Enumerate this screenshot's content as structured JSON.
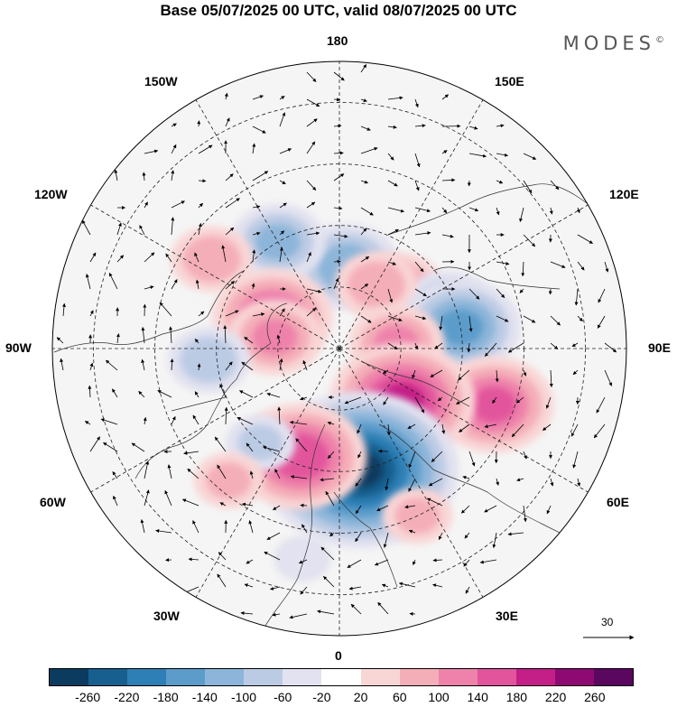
{
  "title": "Base 05/07/2025 00 UTC, valid 08/07/2025 00 UTC",
  "brand": "MODES",
  "brand_mark": "©",
  "longitude_labels": {
    "top": "180",
    "bottom": "0",
    "left": "90W",
    "right": "90E",
    "upper_left_1": "150W",
    "upper_left_2": "120W",
    "upper_right_1": "150E",
    "upper_right_2": "120E",
    "lower_left_1": "60W",
    "lower_left_2": "30W",
    "lower_right_1": "60E",
    "lower_right_2": "30E"
  },
  "reference_vector": "30",
  "colorbar": {
    "colors": [
      "#0b3b5e",
      "#175f8f",
      "#2e7fb5",
      "#5c9ccb",
      "#8cb5d9",
      "#bccbe4",
      "#e2e2f0",
      "#ffffff",
      "#f9d6d6",
      "#f4aeb8",
      "#ee82aa",
      "#e2549c",
      "#c41f86",
      "#8e0a72",
      "#5a0760"
    ],
    "labels": [
      "-260",
      "-220",
      "-180",
      "-140",
      "-100",
      "-60",
      "-20",
      "20",
      "60",
      "100",
      "140",
      "180",
      "220",
      "260"
    ]
  },
  "chart_data": {
    "type": "heatmap",
    "projection": "north-polar-stereographic",
    "field_units_range": [
      -260,
      260
    ],
    "anomalies": [
      {
        "lon": 175,
        "lat": 70,
        "value": -120
      },
      {
        "lon": -150,
        "lat": 60,
        "value": -100
      },
      {
        "lon": -125,
        "lat": 52,
        "value": 80
      },
      {
        "lon": -115,
        "lat": 72,
        "value": 140
      },
      {
        "lon": -100,
        "lat": 74,
        "value": 100
      },
      {
        "lon": -85,
        "lat": 58,
        "value": -80
      },
      {
        "lon": 135,
        "lat": 70,
        "value": 100
      },
      {
        "lon": 110,
        "lat": 62,
        "value": -100
      },
      {
        "lon": 150,
        "lat": 72,
        "value": 80
      },
      {
        "lon": 100,
        "lat": 60,
        "value": -140
      },
      {
        "lon": 95,
        "lat": 76,
        "value": 100
      },
      {
        "lon": 70,
        "lat": 50,
        "value": 140
      },
      {
        "lon": 50,
        "lat": 70,
        "value": 180
      },
      {
        "lon": 10,
        "lat": 60,
        "value": -260
      },
      {
        "lon": -20,
        "lat": 62,
        "value": 160
      },
      {
        "lon": -40,
        "lat": 60,
        "value": -60
      },
      {
        "lon": -40,
        "lat": 48,
        "value": 60
      },
      {
        "lon": 25,
        "lat": 45,
        "value": 60
      },
      {
        "lon": -10,
        "lat": 38,
        "value": -40
      }
    ]
  }
}
